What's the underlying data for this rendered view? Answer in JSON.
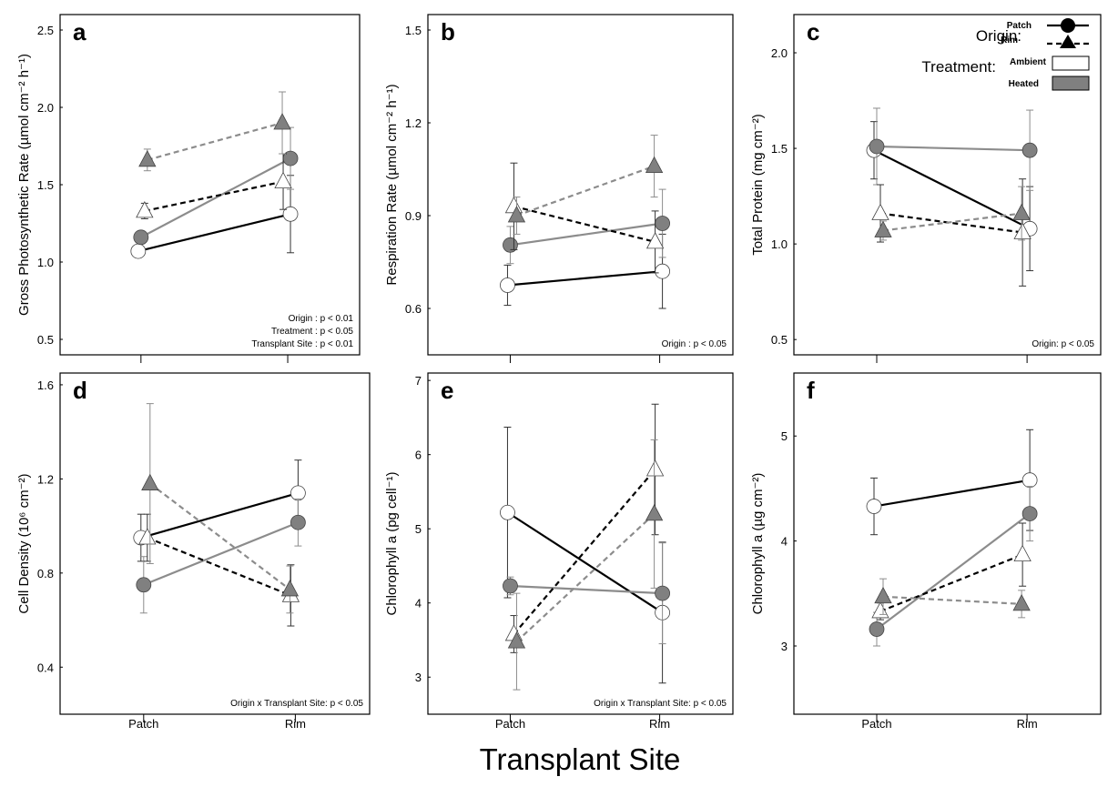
{
  "figure": {
    "xlabel": "Transplant Site",
    "legend": {
      "origin_title": "Origin:",
      "treatment_title": "Treatment:",
      "origin_items": [
        "Patch",
        "Rim"
      ],
      "treatment_items": [
        "Ambient",
        "Heated"
      ]
    },
    "colors": {
      "ambient_fill": "#ffffff",
      "heated_fill": "#808080",
      "ambient_line": "#000000",
      "heated_line": "#8c8c8c"
    }
  },
  "chart_data": [
    {
      "panel": "a",
      "type": "line",
      "ylabel": "Gross Photosynthetic Rate (µmol cm⁻² h⁻¹)",
      "ylim": [
        0.4,
        2.6
      ],
      "yticks": [
        "0.5",
        "1.0",
        "1.5",
        "2.0",
        "2.5"
      ],
      "xticks": [],
      "x": [
        "Patch",
        "Rim"
      ],
      "stats": [
        "Origin : p < 0.01",
        "Treatment : p < 0.05",
        "Transplant Site : p < 0.01"
      ],
      "series": [
        {
          "origin": "Patch",
          "treatment": "Ambient",
          "values": [
            1.07,
            1.31
          ],
          "err": [
            0.04,
            0.25
          ]
        },
        {
          "origin": "Patch",
          "treatment": "Heated",
          "values": [
            1.16,
            1.67
          ],
          "err": [
            0.04,
            0.2
          ]
        },
        {
          "origin": "Rim",
          "treatment": "Ambient",
          "values": [
            1.33,
            1.52
          ],
          "err": [
            0.05,
            0.18
          ]
        },
        {
          "origin": "Rim",
          "treatment": "Heated",
          "values": [
            1.66,
            1.9
          ],
          "err": [
            0.07,
            0.2
          ]
        }
      ]
    },
    {
      "panel": "b",
      "type": "line",
      "ylabel": "Respiration Rate (µmol cm⁻² h⁻¹)",
      "ylim": [
        0.45,
        1.55
      ],
      "yticks": [
        "0.6",
        "0.9",
        "1.2",
        "1.5"
      ],
      "xticks": [],
      "x": [
        "Patch",
        "Rim"
      ],
      "stats": [
        "Origin : p < 0.05"
      ],
      "series": [
        {
          "origin": "Patch",
          "treatment": "Ambient",
          "values": [
            0.675,
            0.72
          ],
          "err": [
            0.065,
            0.12
          ]
        },
        {
          "origin": "Patch",
          "treatment": "Heated",
          "values": [
            0.805,
            0.875
          ],
          "err": [
            0.06,
            0.11
          ]
        },
        {
          "origin": "Rim",
          "treatment": "Ambient",
          "values": [
            0.93,
            0.815
          ],
          "err": [
            0.14,
            0.1
          ]
        },
        {
          "origin": "Rim",
          "treatment": "Heated",
          "values": [
            0.9,
            1.06
          ],
          "err": [
            0.06,
            0.1
          ]
        }
      ]
    },
    {
      "panel": "c",
      "type": "line",
      "ylabel": "Total Protein (mg cm⁻²)",
      "ylim": [
        0.42,
        2.2
      ],
      "yticks": [
        "0.5",
        "1.0",
        "1.5",
        "2.0"
      ],
      "xticks": [],
      "x": [
        "Patch",
        "Rim"
      ],
      "stats": [
        "Origin: p < 0.05"
      ],
      "series": [
        {
          "origin": "Patch",
          "treatment": "Ambient",
          "values": [
            1.49,
            1.08
          ],
          "err": [
            0.15,
            0.22
          ]
        },
        {
          "origin": "Patch",
          "treatment": "Heated",
          "values": [
            1.51,
            1.49
          ],
          "err": [
            0.2,
            0.21
          ]
        },
        {
          "origin": "Rim",
          "treatment": "Ambient",
          "values": [
            1.16,
            1.06
          ],
          "err": [
            0.15,
            0.28
          ]
        },
        {
          "origin": "Rim",
          "treatment": "Heated",
          "values": [
            1.07,
            1.16
          ],
          "err": [
            0.05,
            0.14
          ]
        }
      ]
    },
    {
      "panel": "d",
      "type": "line",
      "ylabel": "Cell Density (10⁶ cm⁻²)",
      "ylim": [
        0.2,
        1.65
      ],
      "yticks": [
        "0.4",
        "0.8",
        "1.2",
        "1.6"
      ],
      "xticks": [
        "Patch",
        "Rim"
      ],
      "x": [
        "Patch",
        "Rim"
      ],
      "stats": [
        "Origin x Transplant Site: p < 0.05"
      ],
      "series": [
        {
          "origin": "Patch",
          "treatment": "Ambient",
          "values": [
            0.95,
            1.14
          ],
          "err": [
            0.1,
            0.14
          ]
        },
        {
          "origin": "Patch",
          "treatment": "Heated",
          "values": [
            0.75,
            1.015
          ],
          "err": [
            0.12,
            0.1
          ]
        },
        {
          "origin": "Rim",
          "treatment": "Ambient",
          "values": [
            0.95,
            0.705
          ],
          "err": [
            0.1,
            0.13
          ]
        },
        {
          "origin": "Rim",
          "treatment": "Heated",
          "values": [
            1.18,
            0.73
          ],
          "err": [
            0.34,
            0.1
          ]
        }
      ]
    },
    {
      "panel": "e",
      "type": "line",
      "ylabel": "Chlorophyll a (pg cell⁻¹)",
      "ylim": [
        2.5,
        7.1
      ],
      "yticks": [
        "3",
        "4",
        "5",
        "6",
        "7"
      ],
      "xticks": [
        "Patch",
        "Rim"
      ],
      "x": [
        "Patch",
        "Rim"
      ],
      "stats": [
        "Origin x Transplant Site: p < 0.05"
      ],
      "series": [
        {
          "origin": "Patch",
          "treatment": "Ambient",
          "values": [
            5.22,
            3.87
          ],
          "err": [
            1.15,
            0.95
          ]
        },
        {
          "origin": "Patch",
          "treatment": "Heated",
          "values": [
            4.23,
            4.13
          ],
          "err": [
            0.12,
            0.68
          ]
        },
        {
          "origin": "Rim",
          "treatment": "Ambient",
          "values": [
            3.58,
            5.8
          ],
          "err": [
            0.25,
            0.88
          ]
        },
        {
          "origin": "Rim",
          "treatment": "Heated",
          "values": [
            3.48,
            5.2
          ],
          "err": [
            0.65,
            1.0
          ]
        }
      ]
    },
    {
      "panel": "f",
      "type": "line",
      "ylabel": "Chlorophyll a (µg cm⁻²)",
      "ylim": [
        2.35,
        5.6
      ],
      "yticks": [
        "3",
        "4",
        "5"
      ],
      "xticks": [
        "Patch",
        "Rim"
      ],
      "x": [
        "Patch",
        "Rim"
      ],
      "stats": [],
      "series": [
        {
          "origin": "Patch",
          "treatment": "Ambient",
          "values": [
            4.33,
            4.58
          ],
          "err": [
            0.27,
            0.48
          ]
        },
        {
          "origin": "Patch",
          "treatment": "Heated",
          "values": [
            3.16,
            4.26
          ],
          "err": [
            0.16,
            0.26
          ]
        },
        {
          "origin": "Rim",
          "treatment": "Ambient",
          "values": [
            3.33,
            3.87
          ],
          "err": [
            0.08,
            0.3
          ]
        },
        {
          "origin": "Rim",
          "treatment": "Heated",
          "values": [
            3.47,
            3.4
          ],
          "err": [
            0.17,
            0.13
          ]
        }
      ]
    }
  ]
}
